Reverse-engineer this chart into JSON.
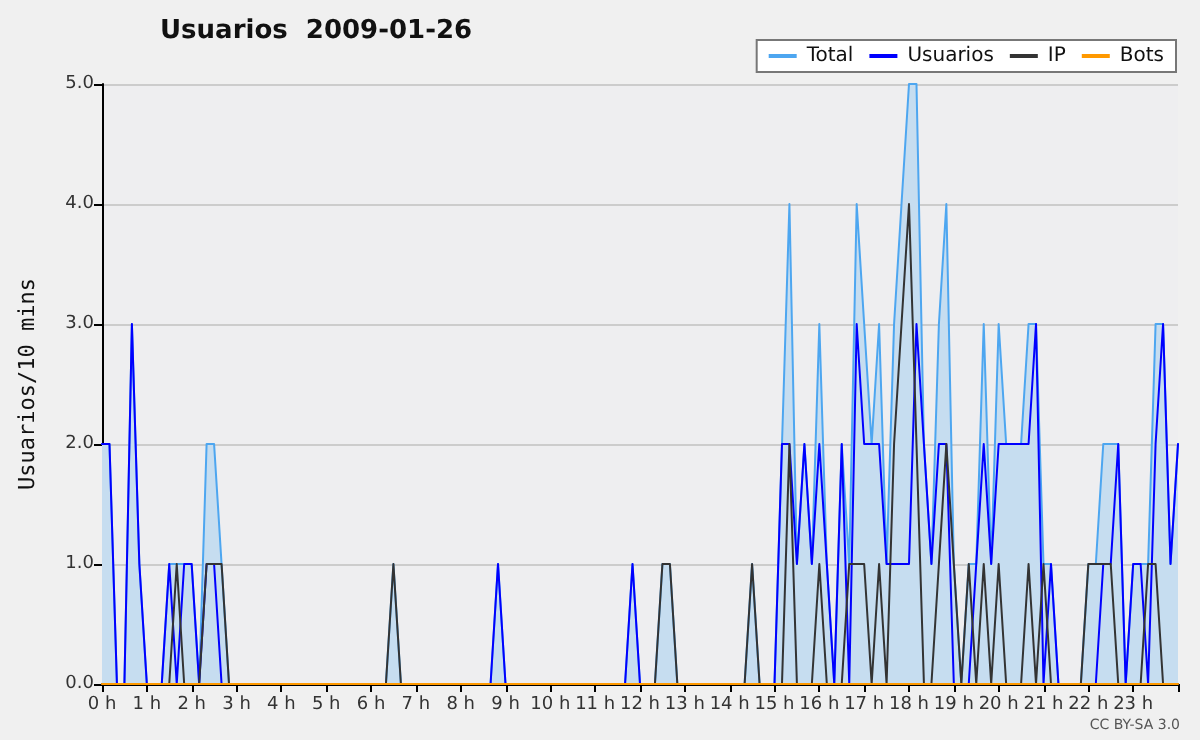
{
  "chart_data": {
    "type": "line",
    "title": "Usuarios  2009-01-26",
    "ylabel": "Usuarios/10 mins",
    "annotations": [
      "CC BY-SA 3.0"
    ],
    "x": [
      0,
      0.167,
      0.333,
      0.5,
      0.667,
      0.833,
      1,
      1.167,
      1.333,
      1.5,
      1.667,
      1.833,
      2,
      2.167,
      2.333,
      2.5,
      2.667,
      2.833,
      3,
      3.167,
      3.333,
      3.5,
      3.667,
      3.833,
      4,
      4.167,
      4.333,
      4.5,
      4.667,
      4.833,
      5,
      5.167,
      5.333,
      5.5,
      5.667,
      5.833,
      6,
      6.167,
      6.333,
      6.5,
      6.667,
      6.833,
      7,
      7.167,
      7.333,
      7.5,
      7.667,
      7.833,
      8,
      8.167,
      8.333,
      8.5,
      8.667,
      8.833,
      9,
      9.167,
      9.333,
      9.5,
      9.667,
      9.833,
      10,
      10.167,
      10.333,
      10.5,
      10.667,
      10.833,
      11,
      11.167,
      11.333,
      11.5,
      11.667,
      11.833,
      12,
      12.167,
      12.333,
      12.5,
      12.667,
      12.833,
      13,
      13.167,
      13.333,
      13.5,
      13.667,
      13.833,
      14,
      14.167,
      14.333,
      14.5,
      14.667,
      14.833,
      15,
      15.167,
      15.333,
      15.5,
      15.667,
      15.833,
      16,
      16.167,
      16.333,
      16.5,
      16.667,
      16.833,
      17,
      17.167,
      17.333,
      17.5,
      17.667,
      17.833,
      18,
      18.167,
      18.333,
      18.5,
      18.667,
      18.833,
      19,
      19.167,
      19.333,
      19.5,
      19.667,
      19.833,
      20,
      20.167,
      20.333,
      20.5,
      20.667,
      20.833,
      21,
      21.167,
      21.333,
      21.5,
      21.667,
      21.833,
      22,
      22.167,
      22.333,
      22.5,
      22.667,
      22.833,
      23,
      23.167,
      23.333,
      23.5,
      23.667,
      23.833,
      24
    ],
    "series": [
      {
        "name": "Total",
        "type": "area",
        "color": "#4da6f0",
        "values": [
          2,
          2,
          0,
          0,
          3,
          1,
          0,
          0,
          0,
          1,
          1,
          1,
          1,
          0,
          2,
          2,
          1,
          0,
          0,
          0,
          0,
          0,
          0,
          0,
          0,
          0,
          0,
          0,
          0,
          0,
          0,
          0,
          0,
          0,
          0,
          0,
          0,
          0,
          0,
          1,
          0,
          0,
          0,
          0,
          0,
          0,
          0,
          0,
          0,
          0,
          0,
          0,
          0,
          1,
          0,
          0,
          0,
          0,
          0,
          0,
          0,
          0,
          0,
          0,
          0,
          0,
          0,
          0,
          0,
          0,
          0,
          1,
          0,
          0,
          0,
          1,
          1,
          0,
          0,
          0,
          0,
          0,
          0,
          0,
          0,
          0,
          0,
          1,
          0,
          0,
          0,
          2,
          4,
          1,
          2,
          1,
          3,
          1,
          0,
          2,
          1,
          4,
          3,
          2,
          3,
          1,
          3,
          4,
          5,
          5,
          2,
          1,
          3,
          4,
          1,
          0,
          1,
          1,
          3,
          1,
          3,
          2,
          2,
          2,
          3,
          3,
          1,
          1,
          0,
          0,
          0,
          0,
          1,
          1,
          2,
          2,
          2,
          0,
          1,
          1,
          1,
          3,
          3,
          1,
          2
        ]
      },
      {
        "name": "Usuarios",
        "color": "#0000ff",
        "values": [
          2,
          2,
          0,
          0,
          3,
          1,
          0,
          0,
          0,
          1,
          0,
          1,
          1,
          0,
          1,
          1,
          0,
          0,
          0,
          0,
          0,
          0,
          0,
          0,
          0,
          0,
          0,
          0,
          0,
          0,
          0,
          0,
          0,
          0,
          0,
          0,
          0,
          0,
          0,
          0,
          0,
          0,
          0,
          0,
          0,
          0,
          0,
          0,
          0,
          0,
          0,
          0,
          0,
          1,
          0,
          0,
          0,
          0,
          0,
          0,
          0,
          0,
          0,
          0,
          0,
          0,
          0,
          0,
          0,
          0,
          0,
          1,
          0,
          0,
          0,
          0,
          0,
          0,
          0,
          0,
          0,
          0,
          0,
          0,
          0,
          0,
          0,
          0,
          0,
          0,
          0,
          2,
          2,
          1,
          2,
          1,
          2,
          1,
          0,
          2,
          0,
          3,
          2,
          2,
          2,
          1,
          1,
          1,
          1,
          3,
          2,
          1,
          2,
          2,
          0,
          0,
          0,
          1,
          2,
          1,
          2,
          2,
          2,
          2,
          2,
          3,
          0,
          1,
          0,
          0,
          0,
          0,
          0,
          0,
          1,
          1,
          2,
          0,
          1,
          1,
          0,
          2,
          3,
          1,
          2
        ]
      },
      {
        "name": "IP",
        "color": "#333333",
        "values": [
          0,
          0,
          0,
          0,
          0,
          0,
          0,
          0,
          0,
          0,
          1,
          0,
          0,
          0,
          1,
          1,
          1,
          0,
          0,
          0,
          0,
          0,
          0,
          0,
          0,
          0,
          0,
          0,
          0,
          0,
          0,
          0,
          0,
          0,
          0,
          0,
          0,
          0,
          0,
          1,
          0,
          0,
          0,
          0,
          0,
          0,
          0,
          0,
          0,
          0,
          0,
          0,
          0,
          0,
          0,
          0,
          0,
          0,
          0,
          0,
          0,
          0,
          0,
          0,
          0,
          0,
          0,
          0,
          0,
          0,
          0,
          0,
          0,
          0,
          0,
          1,
          1,
          0,
          0,
          0,
          0,
          0,
          0,
          0,
          0,
          0,
          0,
          1,
          0,
          0,
          0,
          0,
          2,
          0,
          0,
          0,
          1,
          0,
          0,
          0,
          1,
          1,
          1,
          0,
          1,
          0,
          2,
          3,
          4,
          2,
          0,
          0,
          1,
          2,
          1,
          0,
          1,
          0,
          1,
          0,
          1,
          0,
          0,
          0,
          1,
          0,
          1,
          0,
          0,
          0,
          0,
          0,
          1,
          1,
          1,
          1,
          0,
          0,
          0,
          0,
          1,
          1,
          0,
          0,
          0
        ]
      },
      {
        "name": "Bots",
        "color": "#ff9900",
        "values": [
          0,
          0,
          0,
          0,
          0,
          0,
          0,
          0,
          0,
          0,
          0,
          0,
          0,
          0,
          0,
          0,
          0,
          0,
          0,
          0,
          0,
          0,
          0,
          0,
          0,
          0,
          0,
          0,
          0,
          0,
          0,
          0,
          0,
          0,
          0,
          0,
          0,
          0,
          0,
          0,
          0,
          0,
          0,
          0,
          0,
          0,
          0,
          0,
          0,
          0,
          0,
          0,
          0,
          0,
          0,
          0,
          0,
          0,
          0,
          0,
          0,
          0,
          0,
          0,
          0,
          0,
          0,
          0,
          0,
          0,
          0,
          0,
          0,
          0,
          0,
          0,
          0,
          0,
          0,
          0,
          0,
          0,
          0,
          0,
          0,
          0,
          0,
          0,
          0,
          0,
          0,
          0,
          0,
          0,
          0,
          0,
          0,
          0,
          0,
          0,
          0,
          0,
          0,
          0,
          0,
          0,
          0,
          0,
          0,
          0,
          0,
          0,
          0,
          0,
          0,
          0,
          0,
          0,
          0,
          0,
          0,
          0,
          0,
          0,
          0,
          0,
          0,
          0,
          0,
          0,
          0,
          0,
          0,
          0,
          0,
          0,
          0,
          0,
          0,
          0,
          0,
          0,
          0,
          0,
          0
        ]
      }
    ],
    "xlim": [
      0,
      24
    ],
    "xticks": [
      {
        "value": 0,
        "label": "0 h"
      },
      {
        "value": 1,
        "label": "1 h"
      },
      {
        "value": 2,
        "label": "2 h"
      },
      {
        "value": 3,
        "label": "3 h"
      },
      {
        "value": 4,
        "label": "4 h"
      },
      {
        "value": 5,
        "label": "5 h"
      },
      {
        "value": 6,
        "label": "6 h"
      },
      {
        "value": 7,
        "label": "7 h"
      },
      {
        "value": 8,
        "label": "8 h"
      },
      {
        "value": 9,
        "label": "9 h"
      },
      {
        "value": 10,
        "label": "10 h"
      },
      {
        "value": 11,
        "label": "11 h"
      },
      {
        "value": 12,
        "label": "12 h"
      },
      {
        "value": 13,
        "label": "13 h"
      },
      {
        "value": 14,
        "label": "14 h"
      },
      {
        "value": 15,
        "label": "15 h"
      },
      {
        "value": 16,
        "label": "16 h"
      },
      {
        "value": 17,
        "label": "17 h"
      },
      {
        "value": 18,
        "label": "18 h"
      },
      {
        "value": 19,
        "label": "19 h"
      },
      {
        "value": 20,
        "label": "20 h"
      },
      {
        "value": 21,
        "label": "21 h"
      },
      {
        "value": 22,
        "label": "22 h"
      },
      {
        "value": 23,
        "label": "23 h"
      },
      {
        "value": 24,
        "label": null
      }
    ],
    "ylim": [
      0,
      5
    ],
    "yticks": [
      {
        "value": 0,
        "label": "0.0"
      },
      {
        "value": 1,
        "label": "1.0"
      },
      {
        "value": 2,
        "label": "2.0"
      },
      {
        "value": 3,
        "label": "3.0"
      },
      {
        "value": 4,
        "label": "4.0"
      },
      {
        "value": 5,
        "label": "5.0"
      }
    ],
    "grid": "y",
    "legend": "top right",
    "marker": "none"
  }
}
